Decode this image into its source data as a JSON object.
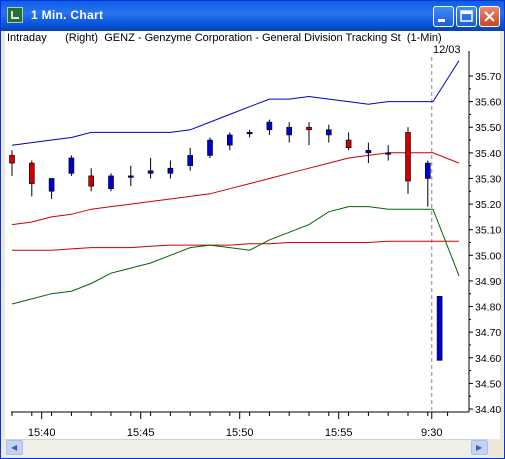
{
  "window": {
    "title": "1 Min. Chart"
  },
  "chart_header": {
    "mode": "Intraday",
    "axis_side": "(Right)",
    "symbol_desc": "GENZ - Genzyme Corporation - General Division Tracking St  (1-Min)"
  },
  "date_label": "12/03",
  "colors": {
    "up": "#0000cc",
    "down": "#cc0000",
    "upper_band": "#0000cc",
    "mid_band": "#cc0000",
    "flat_line": "#cc0000",
    "green_line": "#006600"
  },
  "chart_data": {
    "type": "candlestick",
    "title": "",
    "y_ticks": [
      35.7,
      35.6,
      35.5,
      35.4,
      35.3,
      35.2,
      35.1,
      35.0,
      34.9,
      34.8,
      34.7,
      34.6,
      34.5,
      34.4
    ],
    "y_tick_labels": [
      "35.70",
      "35.60",
      "35.50",
      "35.40",
      "35.30",
      "35.20",
      "35.10",
      "35.00",
      "34.90",
      "34.80",
      "34.70",
      "34.60",
      "34.50",
      "34.40"
    ],
    "ylim": [
      34.38,
      35.76
    ],
    "x_tick_labels": [
      {
        "index": 1.5,
        "label": "15:40"
      },
      {
        "index": 6.5,
        "label": "15:45"
      },
      {
        "index": 11.5,
        "label": "15:50"
      },
      {
        "index": 16.5,
        "label": "15:55"
      },
      {
        "index": 21.2,
        "label": "9:30"
      }
    ],
    "separator_index": 21.2,
    "candles": [
      {
        "o": 35.39,
        "h": 35.41,
        "l": 35.31,
        "c": 35.36
      },
      {
        "o": 35.36,
        "h": 35.37,
        "l": 35.23,
        "c": 35.28
      },
      {
        "o": 35.25,
        "h": 35.3,
        "l": 35.22,
        "c": 35.3
      },
      {
        "o": 35.32,
        "h": 35.39,
        "l": 35.31,
        "c": 35.38
      },
      {
        "o": 35.31,
        "h": 35.34,
        "l": 35.25,
        "c": 35.27
      },
      {
        "o": 35.26,
        "h": 35.32,
        "l": 35.25,
        "c": 35.31
      },
      {
        "o": 35.31,
        "h": 35.35,
        "l": 35.27,
        "c": 35.31
      },
      {
        "o": 35.32,
        "h": 35.38,
        "l": 35.3,
        "c": 35.33
      },
      {
        "o": 35.32,
        "h": 35.37,
        "l": 35.3,
        "c": 35.34
      },
      {
        "o": 35.35,
        "h": 35.42,
        "l": 35.33,
        "c": 35.39
      },
      {
        "o": 35.39,
        "h": 35.46,
        "l": 35.38,
        "c": 35.45
      },
      {
        "o": 35.43,
        "h": 35.48,
        "l": 35.41,
        "c": 35.47
      },
      {
        "o": 35.48,
        "h": 35.49,
        "l": 35.46,
        "c": 35.48
      },
      {
        "o": 35.49,
        "h": 35.53,
        "l": 35.47,
        "c": 35.52
      },
      {
        "o": 35.47,
        "h": 35.52,
        "l": 35.44,
        "c": 35.5
      },
      {
        "o": 35.5,
        "h": 35.52,
        "l": 35.43,
        "c": 35.49
      },
      {
        "o": 35.47,
        "h": 35.51,
        "l": 35.44,
        "c": 35.49
      },
      {
        "o": 35.45,
        "h": 35.48,
        "l": 35.41,
        "c": 35.42
      },
      {
        "o": 35.4,
        "h": 35.44,
        "l": 35.36,
        "c": 35.41
      },
      {
        "o": 35.4,
        "h": 35.43,
        "l": 35.37,
        "c": 35.4
      },
      {
        "o": 35.48,
        "h": 35.5,
        "l": 35.24,
        "c": 35.29
      },
      {
        "o": 35.3,
        "h": 35.37,
        "l": 35.19,
        "c": 35.36
      },
      {
        "o": 34.59,
        "h": 34.84,
        "l": 34.59,
        "c": 34.84
      }
    ],
    "series": [
      {
        "kind": "upper_band",
        "values": [
          35.43,
          35.44,
          35.45,
          35.46,
          35.48,
          35.48,
          35.48,
          35.48,
          35.48,
          35.49,
          35.52,
          35.55,
          35.58,
          35.61,
          35.61,
          35.62,
          35.61,
          35.6,
          35.59,
          35.6,
          35.6,
          35.6,
          35.76
        ]
      },
      {
        "kind": "mid_band",
        "values": [
          35.12,
          35.13,
          35.15,
          35.16,
          35.18,
          35.19,
          35.2,
          35.21,
          35.22,
          35.23,
          35.24,
          35.26,
          35.28,
          35.3,
          35.32,
          35.34,
          35.36,
          35.38,
          35.39,
          35.4,
          35.4,
          35.4,
          35.36
        ]
      },
      {
        "kind": "flat_line",
        "values": [
          35.02,
          35.02,
          35.02,
          35.025,
          35.03,
          35.03,
          35.03,
          35.035,
          35.04,
          35.04,
          35.04,
          35.04,
          35.045,
          35.045,
          35.05,
          35.05,
          35.05,
          35.05,
          35.05,
          35.055,
          35.055,
          35.055,
          35.055
        ]
      },
      {
        "kind": "green_line",
        "values": [
          34.81,
          34.83,
          34.85,
          34.86,
          34.89,
          34.93,
          34.95,
          34.97,
          35.0,
          35.03,
          35.04,
          35.03,
          35.02,
          35.06,
          35.09,
          35.12,
          35.17,
          35.19,
          35.19,
          35.18,
          35.18,
          35.18,
          34.92
        ]
      }
    ]
  }
}
